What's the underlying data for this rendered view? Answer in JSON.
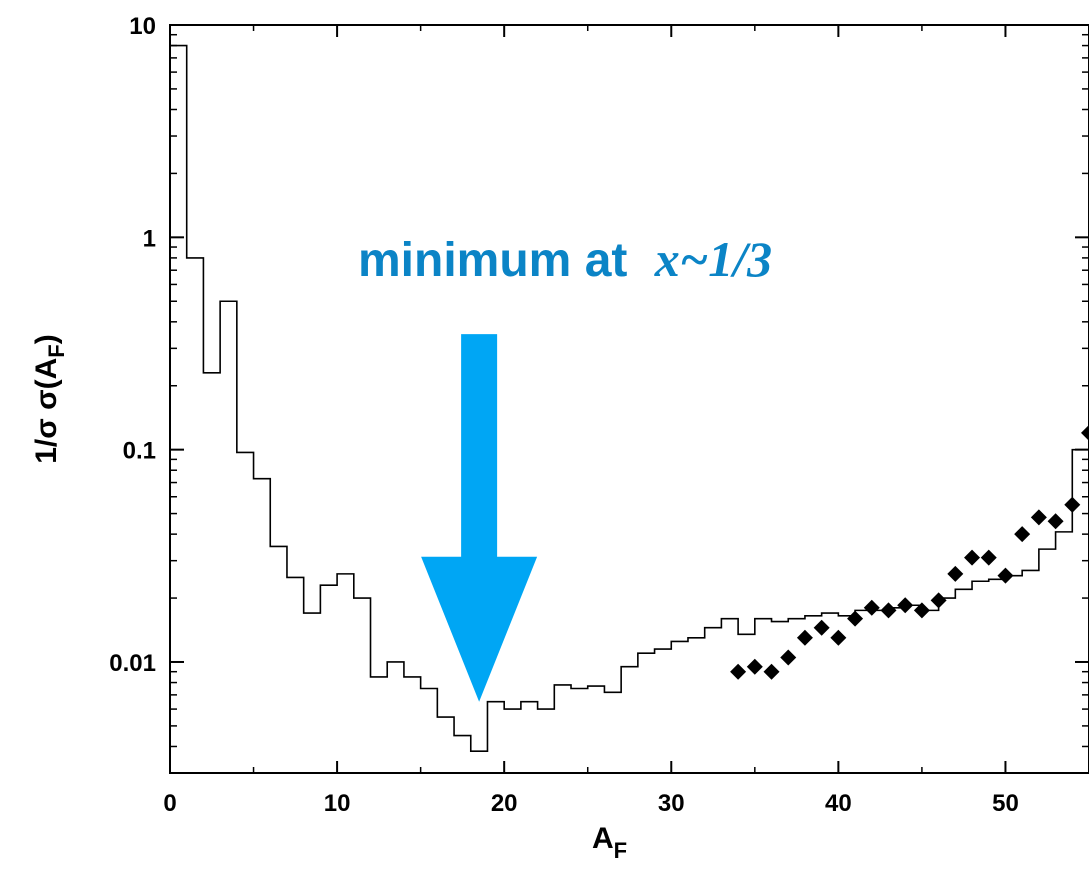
{
  "chart_data": {
    "type": "line",
    "xlabel": "A",
    "xlabel_sub": "F",
    "ylabel_parts": [
      "1/σ σ(A",
      "F",
      ")"
    ],
    "xlim": [
      0,
      55
    ],
    "ylim": [
      0.003,
      10
    ],
    "y_scale": "log",
    "x_ticks": [
      0,
      10,
      20,
      30,
      40,
      50
    ],
    "x_tick_labels": [
      "0",
      "10",
      "20",
      "30",
      "40",
      "50"
    ],
    "y_ticks": [
      0.01,
      0.1,
      1,
      10
    ],
    "y_tick_labels": [
      "0.01",
      "0.1",
      "1",
      "10"
    ],
    "series": [
      {
        "style": "step",
        "bin_edges": [
          0,
          1,
          2,
          3,
          4,
          5,
          6,
          7,
          8,
          9,
          10,
          11,
          12,
          13,
          14,
          15,
          16,
          17,
          18,
          19,
          20,
          21,
          22,
          23,
          24,
          25,
          26,
          27,
          28,
          29,
          30,
          31,
          32,
          33,
          34,
          35,
          36,
          37,
          38,
          39,
          40,
          41,
          42,
          43,
          44,
          45,
          46,
          47,
          48,
          49,
          50,
          51,
          52,
          53,
          54,
          55
        ],
        "values": [
          8.0,
          0.8,
          0.23,
          0.5,
          0.097,
          0.073,
          0.035,
          0.025,
          0.017,
          0.023,
          0.026,
          0.02,
          0.0085,
          0.01,
          0.0085,
          0.0075,
          0.0055,
          0.0045,
          0.0038,
          0.0065,
          0.006,
          0.0065,
          0.006,
          0.0078,
          0.0075,
          0.0077,
          0.0072,
          0.0095,
          0.011,
          0.0115,
          0.0125,
          0.013,
          0.0145,
          0.016,
          0.0135,
          0.016,
          0.0155,
          0.016,
          0.0165,
          0.017,
          0.0165,
          0.0175,
          0.0175,
          0.018,
          0.0185,
          0.0175,
          0.02,
          0.022,
          0.024,
          0.0245,
          0.0255,
          0.027,
          0.034,
          0.041,
          0.1
        ],
        "color": "#000000"
      },
      {
        "style": "markers",
        "marker": "diamond",
        "x": [
          34,
          35,
          36,
          37,
          38,
          39,
          40,
          41,
          42,
          43,
          44,
          45,
          46,
          47,
          48,
          49,
          50,
          51,
          52,
          53,
          54,
          55
        ],
        "y": [
          0.009,
          0.0095,
          0.009,
          0.0105,
          0.013,
          0.0145,
          0.013,
          0.016,
          0.018,
          0.0175,
          0.0185,
          0.0175,
          0.0195,
          0.026,
          0.031,
          0.031,
          0.0255,
          0.04,
          0.048,
          0.046,
          0.055,
          0.12
        ],
        "color": "#000000"
      }
    ],
    "annotations": [
      {
        "text": "minimum at ",
        "math": "x~1/3",
        "color": "#0b84c6",
        "arrow_color": "#00a6f4",
        "arrow_x": 18.5,
        "arrow_tip_y": 0.0065,
        "arrow_tail_y": 0.35
      }
    ],
    "grid": false,
    "legend": "none"
  }
}
